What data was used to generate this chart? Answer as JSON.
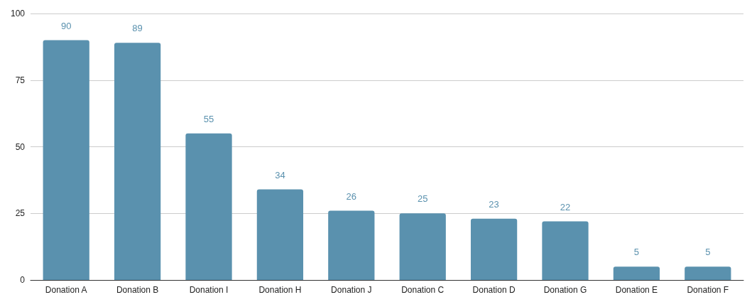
{
  "chart_data": {
    "type": "bar",
    "categories": [
      "Donation A",
      "Donation B",
      "Donation I",
      "Donation H",
      "Donation J",
      "Donation C",
      "Donation D",
      "Donation G",
      "Donation E",
      "Donation F"
    ],
    "values": [
      90,
      89,
      55,
      34,
      26,
      25,
      23,
      22,
      5,
      5
    ],
    "color": "#5a91ae",
    "ylim": [
      0,
      100
    ],
    "yticks": [
      0,
      25,
      50,
      75,
      100
    ],
    "grid": "y",
    "data_labels": true
  }
}
